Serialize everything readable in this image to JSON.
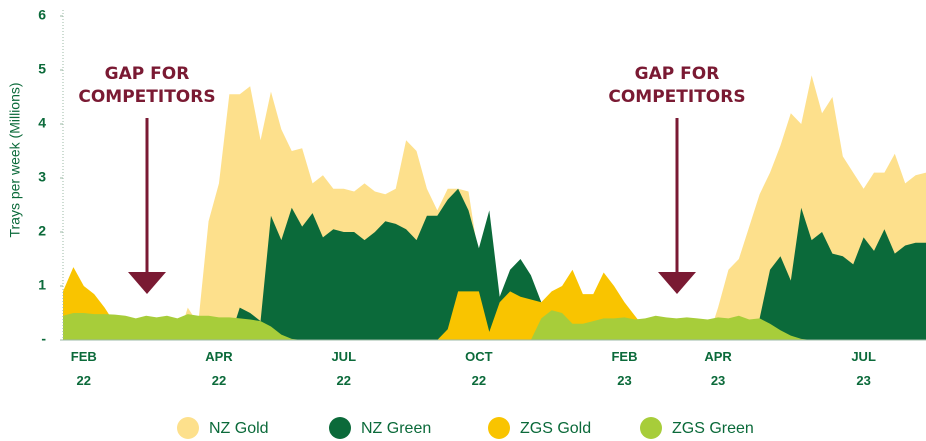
{
  "chart_data": {
    "type": "area",
    "y_label": "Trays per week (Millions)",
    "categories": [
      null,
      null,
      "FEB 22",
      null,
      null,
      null,
      null,
      null,
      null,
      null,
      null,
      null,
      null,
      null,
      null,
      "APR 22",
      null,
      null,
      null,
      null,
      null,
      null,
      null,
      null,
      null,
      null,
      null,
      "JUL 22",
      null,
      null,
      null,
      null,
      null,
      null,
      null,
      null,
      null,
      null,
      null,
      null,
      "OCT 22",
      null,
      null,
      null,
      null,
      null,
      null,
      null,
      null,
      null,
      null,
      null,
      null,
      null,
      "FEB 23",
      null,
      null,
      null,
      null,
      null,
      null,
      null,
      null,
      "APR 23",
      null,
      null,
      null,
      null,
      null,
      null,
      null,
      null,
      null,
      null,
      null,
      null,
      null,
      "JUL 23",
      null,
      null,
      null,
      null,
      null,
      null
    ],
    "series": [
      {
        "name": "NZ Gold",
        "color": "#fde08c",
        "values": [
          0,
          0,
          0,
          0,
          0,
          0,
          0,
          0,
          0,
          0,
          0,
          0,
          0.6,
          0.3,
          2.2,
          2.9,
          4.55,
          4.55,
          4.7,
          3.7,
          4.6,
          3.9,
          3.5,
          3.55,
          2.9,
          3.05,
          2.8,
          2.8,
          2.75,
          2.9,
          2.75,
          2.7,
          2.8,
          3.7,
          3.5,
          2.8,
          2.4,
          2.8,
          2.8,
          2.75,
          1.5,
          0.3,
          0,
          0,
          0,
          0,
          0,
          0,
          0,
          0,
          0,
          0,
          0,
          0,
          0,
          0,
          0,
          0,
          0,
          0,
          0,
          0,
          0,
          0.6,
          1.3,
          1.5,
          2.1,
          2.7,
          3.1,
          3.6,
          4.2,
          4.0,
          4.9,
          4.2,
          4.5,
          3.4,
          3.1,
          2.8,
          3.1,
          3.1,
          3.45,
          2.9,
          3.05,
          3.1
        ]
      },
      {
        "name": "NZ Green",
        "color": "#0b6a3a",
        "values": [
          0,
          0,
          0,
          0,
          0,
          0,
          0,
          0,
          0,
          0,
          0,
          0,
          0,
          0,
          0,
          0,
          0,
          0.6,
          0.5,
          0.35,
          2.3,
          1.85,
          2.45,
          2.1,
          2.35,
          1.9,
          2.05,
          2.0,
          2.0,
          1.85,
          2.0,
          2.2,
          2.15,
          2.05,
          1.85,
          2.3,
          2.3,
          2.6,
          2.8,
          2.4,
          1.7,
          2.4,
          0.8,
          1.3,
          1.5,
          1.2,
          0.7,
          0,
          0,
          0,
          0,
          0,
          0,
          0,
          0,
          0,
          0,
          0,
          0,
          0,
          0,
          0,
          0,
          0,
          0,
          0,
          0,
          0.4,
          1.3,
          1.55,
          1.1,
          2.45,
          1.85,
          2.0,
          1.6,
          1.55,
          1.4,
          1.9,
          1.65,
          2.05,
          1.6,
          1.75,
          1.8,
          1.8
        ]
      },
      {
        "name": "ZGS Gold",
        "color": "#f9c400",
        "values": [
          0.9,
          1.35,
          1.0,
          0.85,
          0.6,
          0.3,
          0,
          0,
          0,
          0,
          0,
          0,
          0,
          0,
          0,
          0,
          0,
          0,
          0,
          0,
          0,
          0,
          0,
          0,
          0,
          0,
          0,
          0,
          0,
          0,
          0,
          0,
          0,
          0,
          0,
          0,
          0,
          0.2,
          0.9,
          0.9,
          0.9,
          0.15,
          0.7,
          0.9,
          0.8,
          0.75,
          0.7,
          0.9,
          1.0,
          1.3,
          0.85,
          0.85,
          1.25,
          1.0,
          0.7,
          0.45,
          0.2,
          0,
          0,
          0,
          0,
          0,
          0,
          0,
          0,
          0,
          0,
          0,
          0,
          0,
          0,
          0,
          0,
          0,
          0,
          0,
          0,
          0,
          0,
          0,
          0,
          0,
          0,
          0
        ]
      },
      {
        "name": "ZGS Green",
        "color": "#a7cd3a",
        "values": [
          0.45,
          0.5,
          0.5,
          0.48,
          0.48,
          0.47,
          0.45,
          0.4,
          0.45,
          0.42,
          0.45,
          0.4,
          0.48,
          0.45,
          0.45,
          0.42,
          0.42,
          0.4,
          0.38,
          0.35,
          0.25,
          0.1,
          0.02,
          0,
          0,
          0,
          0,
          0,
          0,
          0,
          0,
          0,
          0,
          0,
          0,
          0,
          0,
          0,
          0,
          0,
          0,
          0,
          0,
          0,
          0,
          0,
          0.4,
          0.55,
          0.5,
          0.3,
          0.3,
          0.35,
          0.4,
          0.4,
          0.42,
          0.38,
          0.4,
          0.45,
          0.42,
          0.4,
          0.42,
          0.4,
          0.38,
          0.42,
          0.4,
          0.45,
          0.38,
          0.4,
          0.3,
          0.18,
          0.08,
          0.02,
          0,
          0,
          0,
          0,
          0,
          0,
          0,
          0,
          0,
          0,
          0,
          0
        ]
      }
    ],
    "ylim": [
      0,
      6
    ],
    "yticks": [
      {
        "value": 0,
        "label": "-"
      },
      1,
      2,
      3,
      4,
      5,
      6
    ],
    "annotations": [
      {
        "lines": [
          "GAP FOR",
          "COMPETITORS"
        ]
      },
      {
        "lines": [
          "GAP FOR",
          "COMPETITORS"
        ]
      }
    ],
    "legend": "bottom"
  }
}
